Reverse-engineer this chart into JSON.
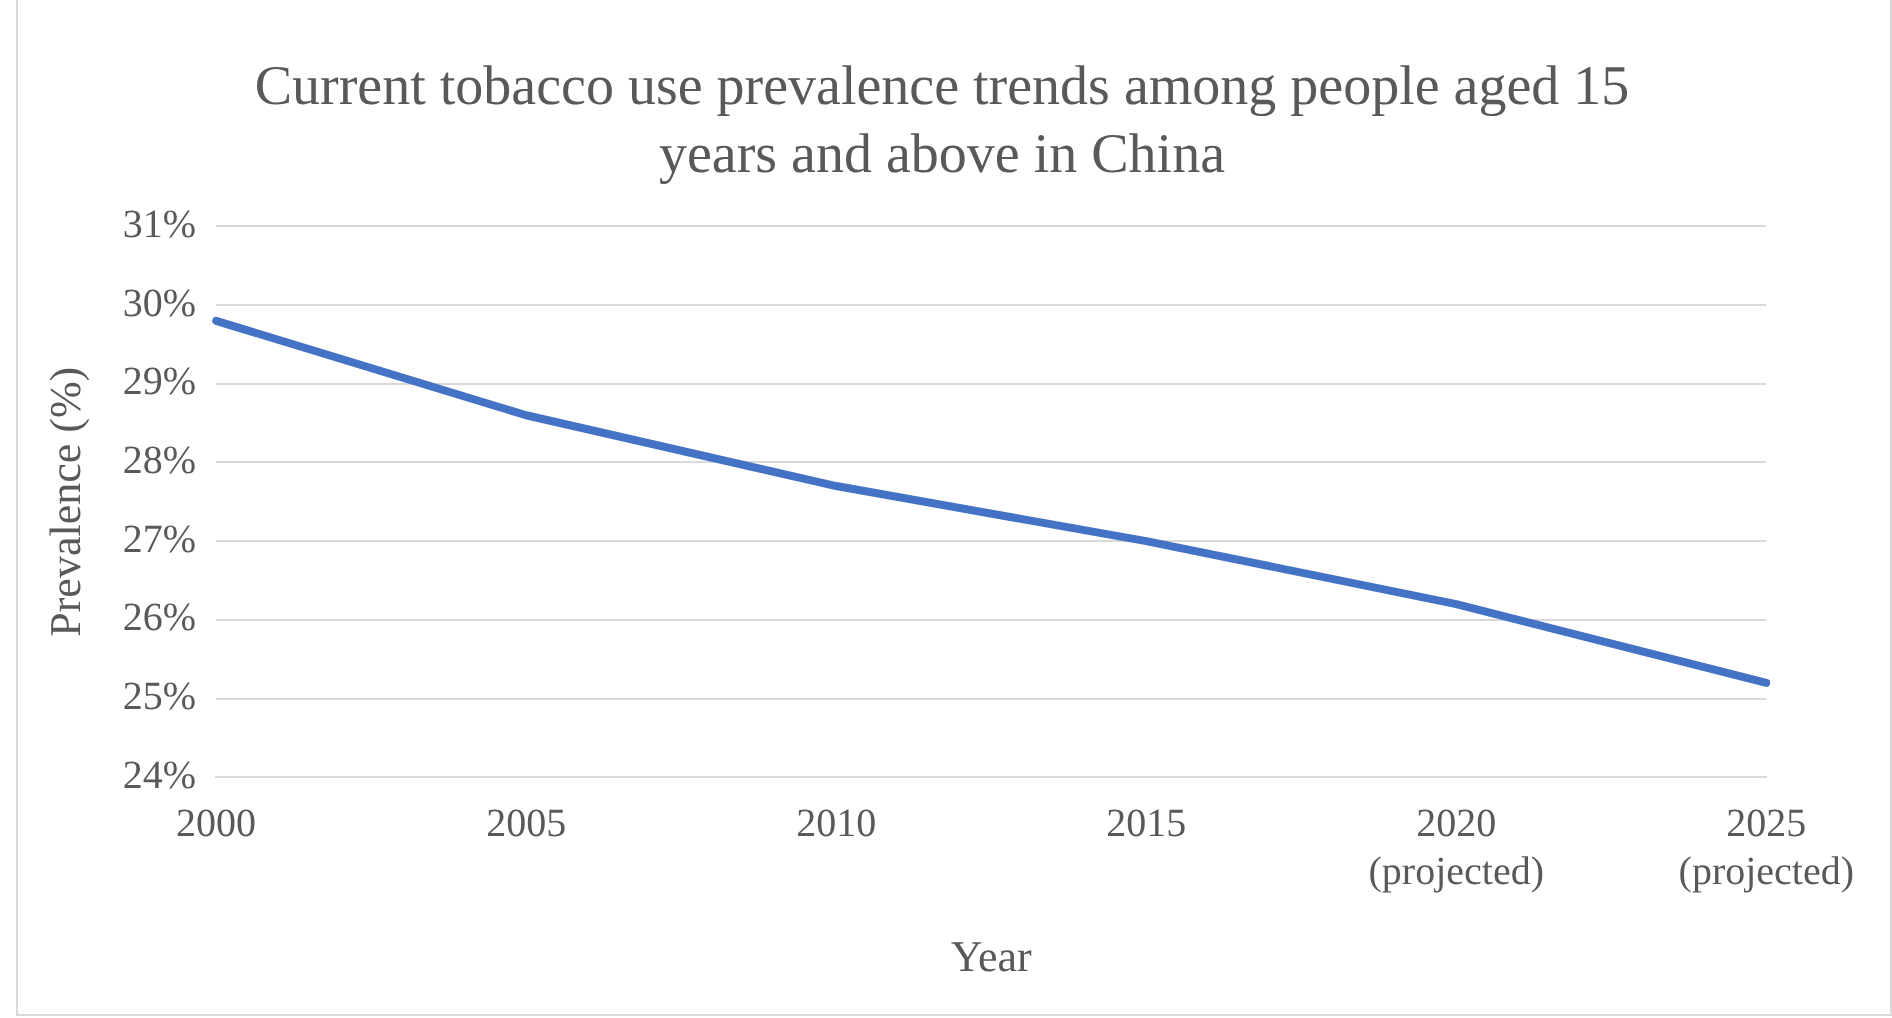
{
  "chart_data": {
    "type": "line",
    "title": "Current tobacco use prevalence trends among people aged 15 years and above in China",
    "xlabel": "Year",
    "ylabel": "Prevalence (%)",
    "categories": [
      "2000",
      "2005",
      "2010",
      "2015",
      "2020 (projected)",
      "2025 (projected)"
    ],
    "series": [
      {
        "color": "#4472c4",
        "values": [
          29.8,
          28.6,
          27.7,
          27.0,
          26.2,
          25.2
        ]
      }
    ],
    "ylim": [
      24,
      31
    ],
    "yticks": [
      {
        "value": 24,
        "label": "24%"
      },
      {
        "value": 25,
        "label": "25%"
      },
      {
        "value": 26,
        "label": "26%"
      },
      {
        "value": 27,
        "label": "27%"
      },
      {
        "value": 28,
        "label": "28%"
      },
      {
        "value": 29,
        "label": "29%"
      },
      {
        "value": 30,
        "label": "30%"
      },
      {
        "value": 31,
        "label": "31%"
      }
    ],
    "grid": "y",
    "legend": false,
    "marker": "none",
    "line_style": "solid"
  }
}
